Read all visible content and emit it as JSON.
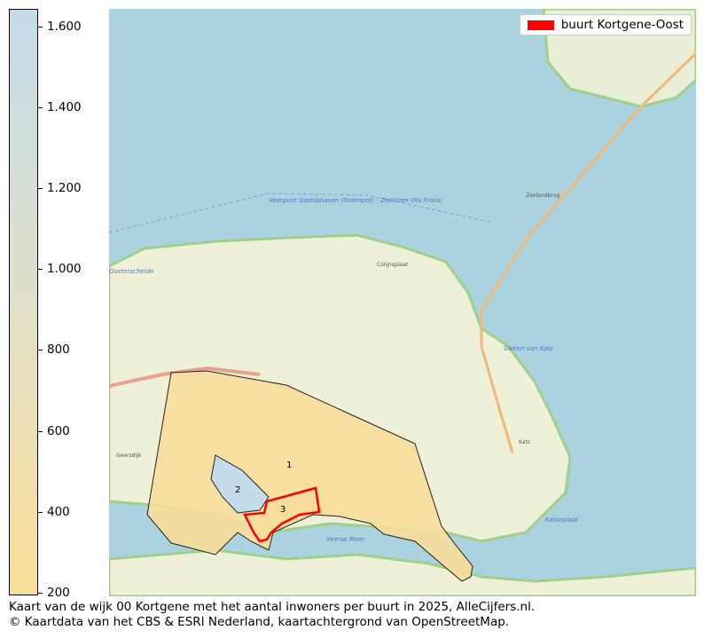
{
  "colorbar": {
    "ticks": [
      "1.600",
      "1.400",
      "1.200",
      "1.000",
      "800",
      "600",
      "400",
      "200"
    ],
    "tick_values": [
      1600,
      1400,
      1200,
      1000,
      800,
      600,
      400,
      200
    ],
    "range": [
      193,
      1644
    ],
    "color_low": "#fadf98",
    "color_high": "#c4dbea"
  },
  "legend": {
    "label": "buurt Kortgene-Oost",
    "color": "#ff0000"
  },
  "map": {
    "regions": [
      {
        "label": "1",
        "color": "#f7dc9c",
        "highlighted": false
      },
      {
        "label": "2",
        "color": "#c4dbea",
        "highlighted": false
      },
      {
        "label": "3",
        "color": "#f7dc9c",
        "highlighted": true
      }
    ],
    "tile_labels": {
      "colijnsplaat": "Colijnsplaat",
      "zeelandbrug": "Zeelandbrug",
      "geersdijk": "Geersdijk",
      "kats": "Kats",
      "veerse_meer": "Veerse Meer",
      "katseplaat": "Katseplaat",
      "oosterschelde": "Oosterschelde",
      "veerpont": "Veerpont Sophiahaven (Roompot) - Zierikzee (Ms Frisia)",
      "sieken": "Sieken van Kats"
    }
  },
  "caption": {
    "line1": "Kaart van de wijk 00 Kortgene met het aantal inwoners per buurt in 2025, AlleCijfers.nl.",
    "line2": "© Kaartdata van het CBS & ESRI Nederland, kaartachtergrond van OpenStreetMap."
  }
}
